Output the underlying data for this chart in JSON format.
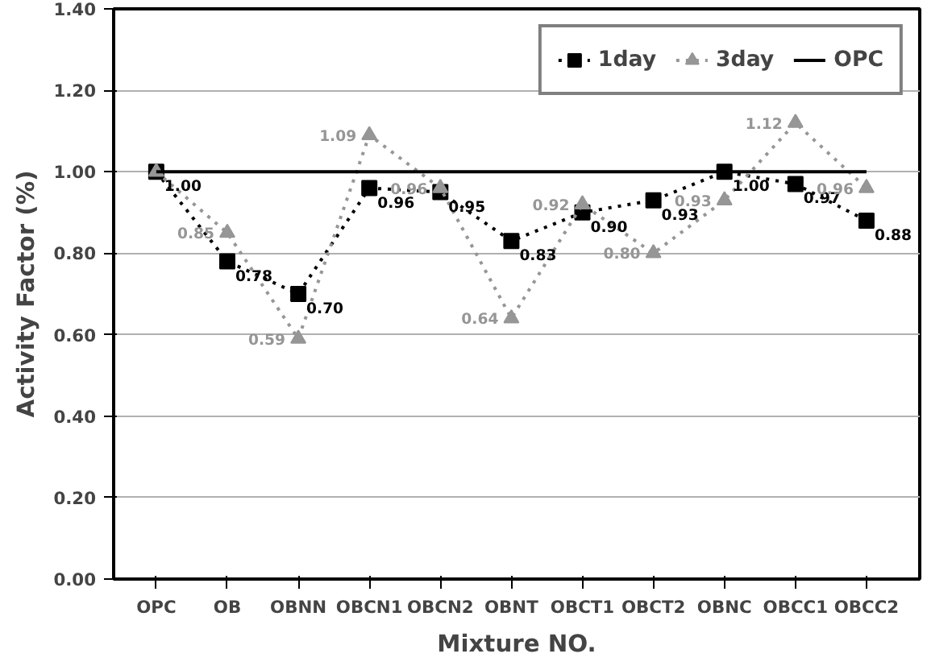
{
  "chart_data": {
    "type": "line",
    "xlabel": "Mixture NO.",
    "ylabel": "Activity Factor (%)",
    "categories": [
      "OPC",
      "OB",
      "OBNN",
      "OBCN1",
      "OBCN2",
      "OBNT",
      "OBCT1",
      "OBCT2",
      "OBNC",
      "OBCC1",
      "OBCC2"
    ],
    "series": [
      {
        "name": "1day",
        "color": "#000000",
        "marker": "square",
        "line_style": "dotted",
        "values": [
          1.0,
          0.78,
          0.7,
          0.96,
          0.95,
          0.83,
          0.9,
          0.93,
          1.0,
          0.97,
          0.88
        ],
        "value_labels": [
          "1.00",
          "0.78",
          "0.70",
          "0.96",
          "0.95",
          "0.83",
          "0.90",
          "0.93",
          "1.00",
          "0.97",
          "0.88"
        ]
      },
      {
        "name": "3day",
        "color": "#969696",
        "marker": "triangle",
        "line_style": "dotted",
        "values": [
          1.0,
          0.85,
          0.59,
          1.09,
          0.96,
          0.64,
          0.92,
          0.8,
          0.93,
          1.12,
          0.96
        ],
        "value_labels": [
          null,
          "0.85",
          "0.59",
          "1.09",
          "0.96",
          "0.64",
          "0.92",
          "0.80",
          "0.93",
          "1.12",
          "0.96"
        ]
      },
      {
        "name": "OPC",
        "color": "#000000",
        "marker": "none",
        "line_style": "solid",
        "values": [
          1.0,
          1.0,
          1.0,
          1.0,
          1.0,
          1.0,
          1.0,
          1.0,
          1.0,
          1.0,
          1.0
        ]
      }
    ],
    "ylim": [
      0,
      1.4
    ],
    "yticks": [
      {
        "value": 0,
        "label": "0.00"
      },
      {
        "value": 0.2,
        "label": "0.20"
      },
      {
        "value": 0.4,
        "label": "0.40"
      },
      {
        "value": 0.6,
        "label": "0.60"
      },
      {
        "value": 0.8,
        "label": "0.80"
      },
      {
        "value": 1.0,
        "label": "1.00"
      },
      {
        "value": 1.2,
        "label": "1.20"
      },
      {
        "value": 1.4,
        "label": "1.40"
      }
    ],
    "grid": "y",
    "legend": "top right"
  }
}
